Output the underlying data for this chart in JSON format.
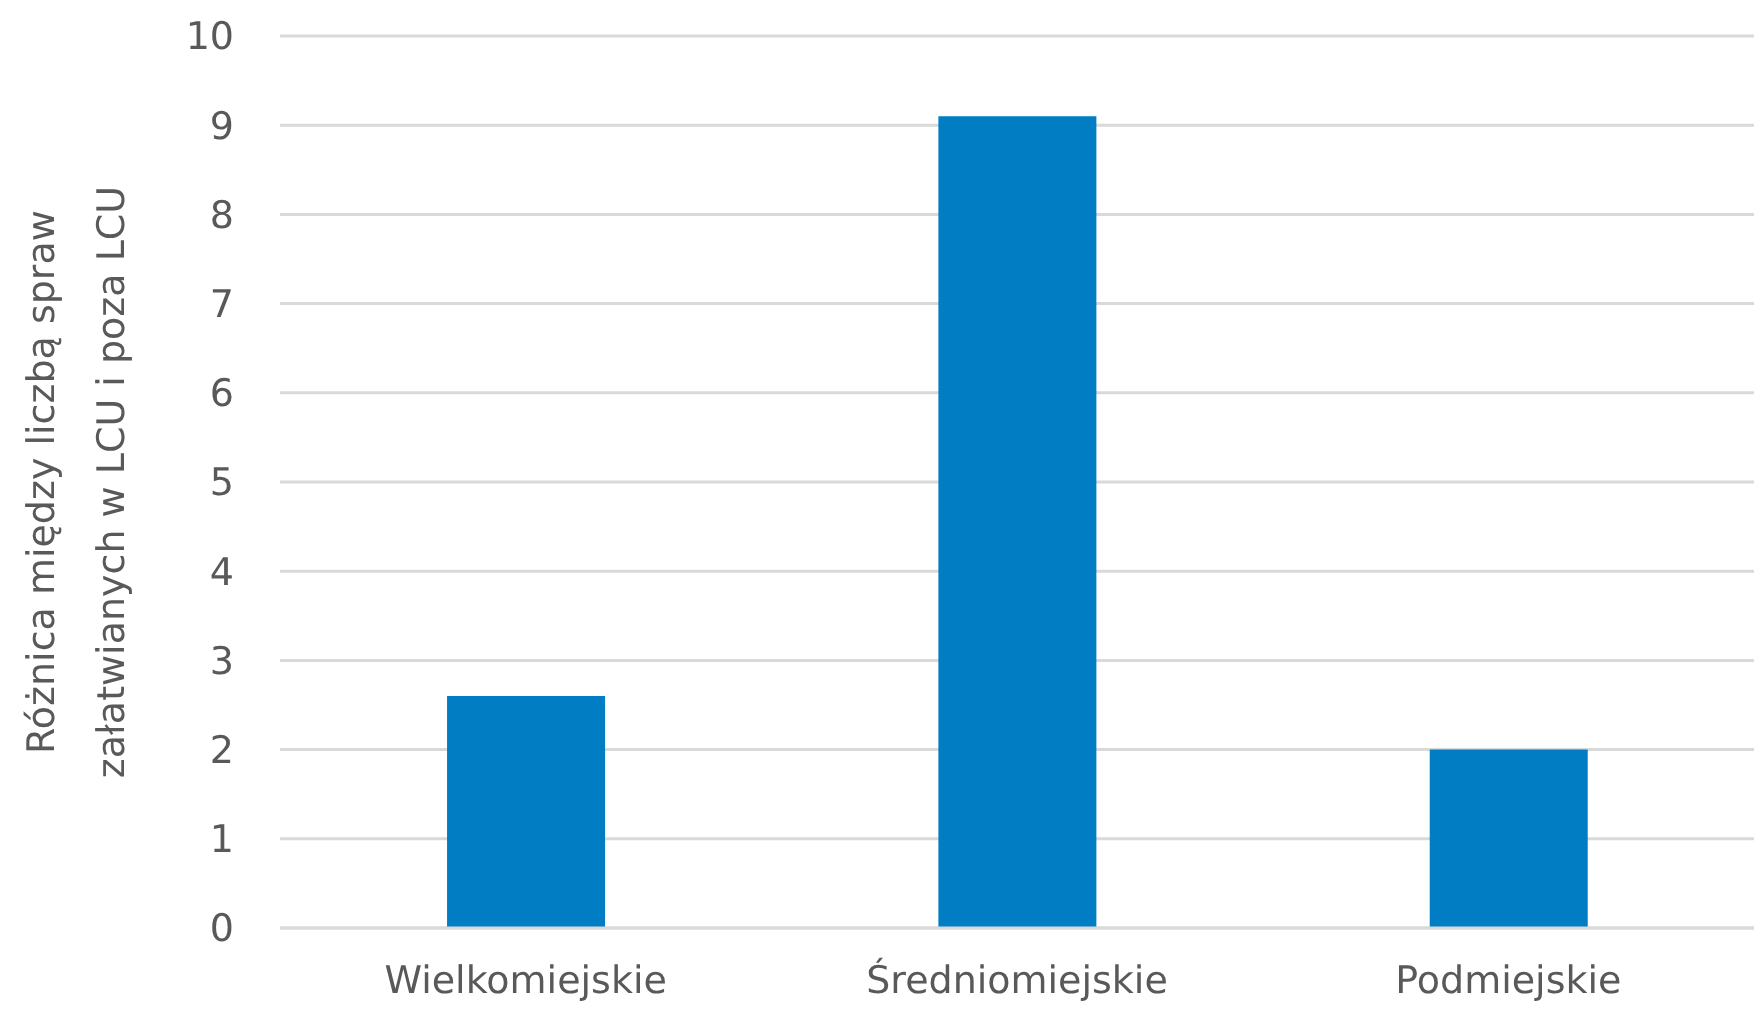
{
  "chart_data": {
    "type": "bar",
    "ylabel": "Różnica między liczbą spraw załatwianych w LCU i poza LCU",
    "categories": [
      "Wielkomiejskie",
      "Średniomiejskie",
      "Podmiejskie"
    ],
    "values": [
      2.6,
      9.1,
      2.0
    ],
    "color": "#007dc3",
    "ylim": [
      0,
      10
    ],
    "yticks": [
      0,
      1,
      2,
      3,
      4,
      5,
      6,
      7,
      8,
      9,
      10
    ],
    "grid": "y"
  }
}
